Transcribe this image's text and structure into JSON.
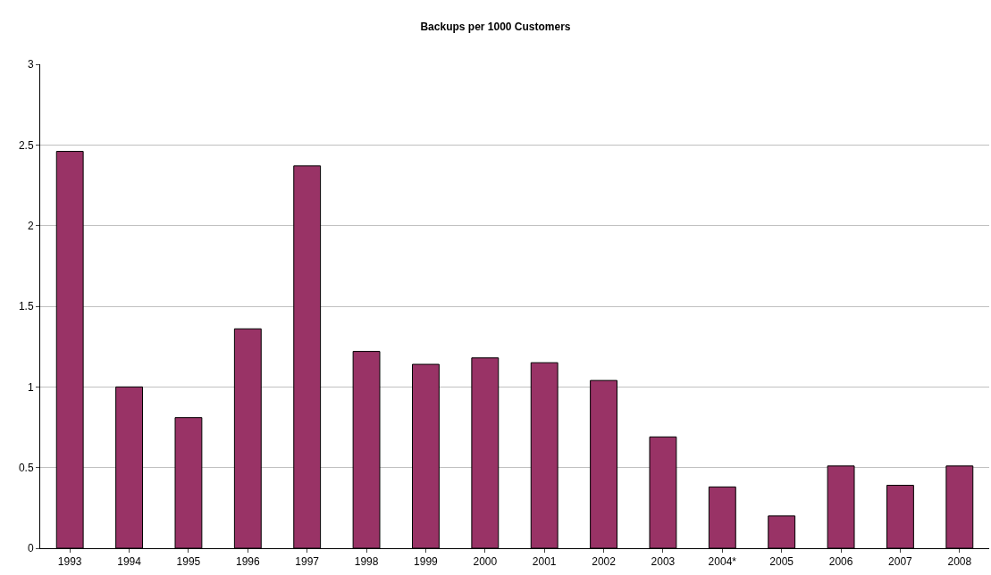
{
  "chart_data": {
    "type": "bar",
    "title": "Backups per 1000 Customers",
    "categories": [
      "1993",
      "1994",
      "1995",
      "1996",
      "1997",
      "1998",
      "1999",
      "2000",
      "2001",
      "2002",
      "2003",
      "2004*",
      "2005",
      "2006",
      "2007",
      "2008"
    ],
    "values": [
      2.46,
      1.0,
      0.81,
      1.36,
      2.37,
      1.22,
      1.14,
      1.18,
      1.15,
      1.04,
      0.69,
      0.38,
      0.2,
      0.51,
      0.39,
      0.51
    ],
    "color": "#993366",
    "ylim": [
      0,
      3
    ],
    "yticks": [
      0,
      0.5,
      1,
      1.5,
      2,
      2.5,
      3
    ],
    "grid": "y",
    "legend": false
  }
}
